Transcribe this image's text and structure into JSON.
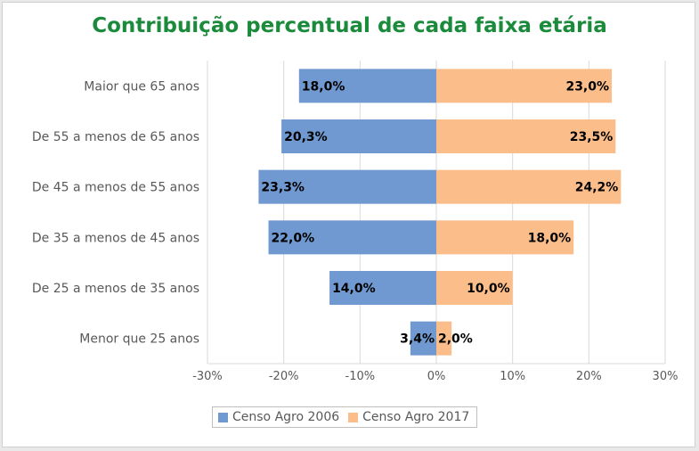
{
  "chart_data": {
    "type": "bar",
    "orientation": "horizontal",
    "title": "Contribuição percentual de cada faixa etária",
    "categories": [
      "Maior que 65 anos",
      "De 55 a menos de 65 anos",
      "De 45 a menos de 55 anos",
      "De 35 a menos de 45 anos",
      "De 25 a menos de 35 anos",
      "Menor que 25 anos"
    ],
    "series": [
      {
        "name": "Censo Agro 2006",
        "values": [
          -18.0,
          -20.3,
          -23.3,
          -22.0,
          -14.0,
          -3.4
        ],
        "labels": [
          "18,0%",
          "20,3%",
          "23,3%",
          "22,0%",
          "14,0%",
          "3,4%"
        ],
        "color": "#6f99d0"
      },
      {
        "name": "Censo Agro 2017",
        "values": [
          23.0,
          23.5,
          24.2,
          18.0,
          10.0,
          2.0
        ],
        "labels": [
          "23,0%",
          "23,5%",
          "24,2%",
          "18,0%",
          "10,0%",
          "2,0%"
        ],
        "color": "#fbbd8a"
      }
    ],
    "xlim": [
      -30,
      30
    ],
    "xticks": [
      -30,
      -20,
      -10,
      0,
      10,
      20,
      30
    ],
    "xtick_labels": [
      "-30%",
      "-20%",
      "-10%",
      "0%",
      "10%",
      "20%",
      "30%"
    ],
    "grid": true,
    "legend_position": "bottom",
    "title_color": "#1a8a3b"
  }
}
